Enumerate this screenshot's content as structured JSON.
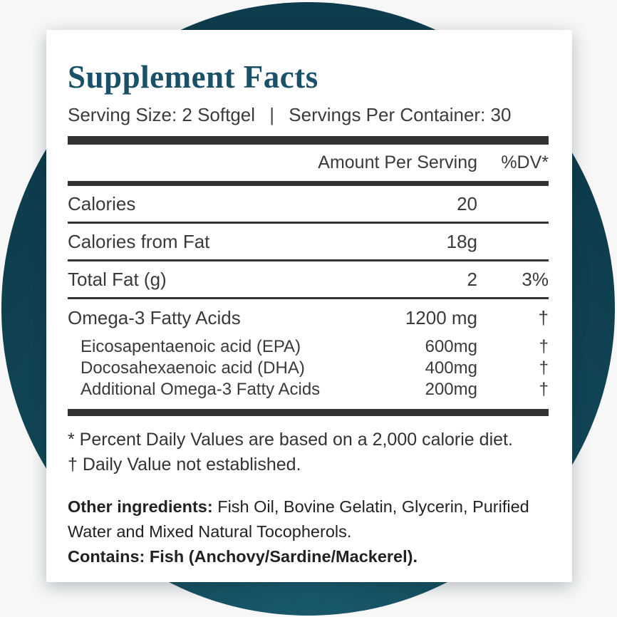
{
  "title": "Supplement Facts",
  "serving": {
    "size": "Serving Size: 2 Softgel",
    "separator": "|",
    "per_container": "Servings Per Container: 30"
  },
  "table": {
    "header": {
      "amount": "Amount Per Serving",
      "dv": "%DV*"
    },
    "rows": [
      {
        "name": "Calories",
        "amount": "20",
        "dv": ""
      },
      {
        "name": "Calories from Fat",
        "amount": "18g",
        "dv": ""
      },
      {
        "name": "Total Fat (g)",
        "amount": "2",
        "dv": "3%"
      },
      {
        "name": "Omega-3 Fatty Acids",
        "amount": "1200 mg",
        "dv": "†"
      },
      {
        "name": "Eicosapentaenoic acid (EPA)",
        "amount": "600mg",
        "dv": "†"
      },
      {
        "name": "Docosahexaenoic acid (DHA)",
        "amount": "400mg",
        "dv": "†"
      },
      {
        "name": "Additional Omega-3 Fatty Acids",
        "amount": "200mg",
        "dv": "†"
      }
    ]
  },
  "footnotes": [
    "* Percent Daily Values are based on a 2,000 calorie diet.",
    "† Daily Value not established."
  ],
  "other_ingredients": {
    "label": "Other ingredients:",
    "text": " Fish Oil, Bovine Gelatin, Glycerin, Purified Water and Mixed Natural Tocopherols."
  },
  "contains": "Contains: Fish (Anchovy/Sardine/Mackerel).",
  "colors": {
    "title_accent": "#1b5069",
    "circle_teal": "#0e3e4e",
    "rule_dark": "#333333",
    "body_text": "#3a3a3a",
    "page_background": "#f7f7f7",
    "card_background": "#ffffff"
  }
}
